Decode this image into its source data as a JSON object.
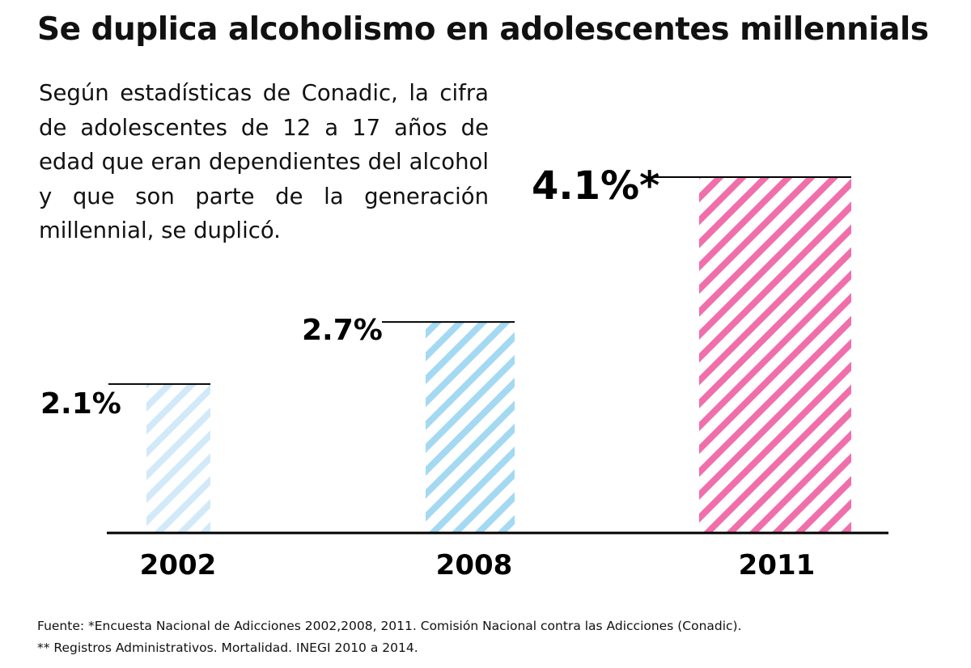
{
  "title": "Se duplica alcoholismo en adolescentes millennials",
  "description": "Según estadísticas de Conadic, la cifra de adolescentes de 12 a 17 años de edad que eran dependientes del alcohol y que son parte de la generación millennial, se duplicó.",
  "footer": {
    "line1": "Fuente: *Encuesta Nacional de Adicciones 2002,2008, 2011. Comisión Nacional contra las Adicciones (Conadic).",
    "line2": "** Registros Administrativos. Mortalidad. INEGI 2010 a 2014."
  },
  "chart_data": {
    "type": "bar",
    "categories": [
      "2002",
      "2008",
      "2011"
    ],
    "values": [
      2.1,
      2.7,
      4.1
    ],
    "data_labels": [
      "2.1%",
      "2.7%",
      "4.1%*"
    ],
    "colors": [
      "#d2e9f9",
      "#a3d9f2",
      "#f06fab"
    ],
    "fill_pattern": "diagonal-stripes",
    "ylim": [
      0.66,
      4.1
    ],
    "grid": false,
    "legend": "none"
  }
}
